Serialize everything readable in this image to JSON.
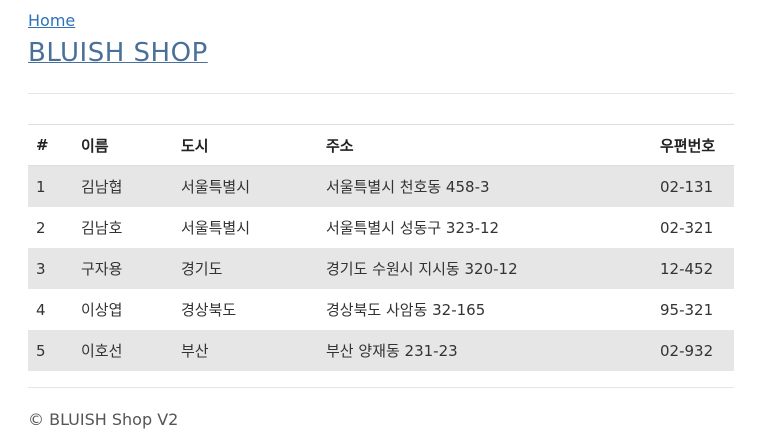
{
  "nav": {
    "home_label": "Home"
  },
  "header": {
    "title": "BLUISH SHOP"
  },
  "table": {
    "headers": [
      "#",
      "이름",
      "도시",
      "주소",
      "우편번호"
    ],
    "rows": [
      {
        "num": "1",
        "name": "김남협",
        "city": "서울특별시",
        "address": "서울특별시 천호동 458-3",
        "zip": "02-131"
      },
      {
        "num": "2",
        "name": "김남호",
        "city": "서울특별시",
        "address": "서울특별시 성동구 323-12",
        "zip": "02-321"
      },
      {
        "num": "3",
        "name": "구자용",
        "city": "경기도",
        "address": "경기도 수원시 지시동 320-12",
        "zip": "12-452"
      },
      {
        "num": "4",
        "name": "이상엽",
        "city": "경상북도",
        "address": "경상북도 사암동 32-165",
        "zip": "95-321"
      },
      {
        "num": "5",
        "name": "이호선",
        "city": "부산",
        "address": "부산 양재동 231-23",
        "zip": "02-932"
      }
    ]
  },
  "footer": {
    "text": "© BLUISH Shop V2"
  },
  "colors": {
    "link": "#2e72b8",
    "title": "#4a6f98",
    "row_stripe": "#e6e6e6"
  }
}
